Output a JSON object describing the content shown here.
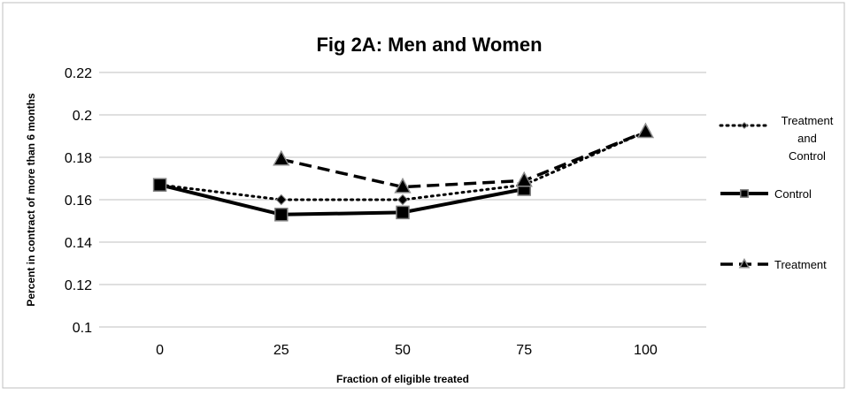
{
  "chart_data": {
    "type": "line",
    "title": "Fig 2A: Men and Women",
    "xlabel": "Fraction of eligible treated",
    "ylabel": "Percent in contract of more than 6 months",
    "categories": [
      "0",
      "25",
      "50",
      "75",
      "100"
    ],
    "ylim": [
      0.1,
      0.22
    ],
    "yticks": [
      "0.1",
      "0.12",
      "0.14",
      "0.16",
      "0.18",
      "0.2",
      "0.22"
    ],
    "grid": true,
    "legend_position": "right",
    "series": [
      {
        "name": "Treatment and Control",
        "legend_lines": [
          "Treatment",
          "and",
          "Control"
        ],
        "values": [
          0.167,
          0.16,
          0.16,
          0.167,
          0.192
        ],
        "style": "dotted",
        "marker": "diamond",
        "color": "#000000"
      },
      {
        "name": "Control",
        "legend_lines": [
          "Control"
        ],
        "values": [
          0.167,
          0.153,
          0.154,
          0.165,
          null
        ],
        "style": "solid",
        "marker": "square",
        "color": "#000000"
      },
      {
        "name": "Treatment",
        "legend_lines": [
          "Treatment"
        ],
        "values": [
          null,
          0.179,
          0.166,
          0.169,
          0.192
        ],
        "style": "dashed",
        "marker": "triangle",
        "color": "#000000"
      }
    ]
  }
}
